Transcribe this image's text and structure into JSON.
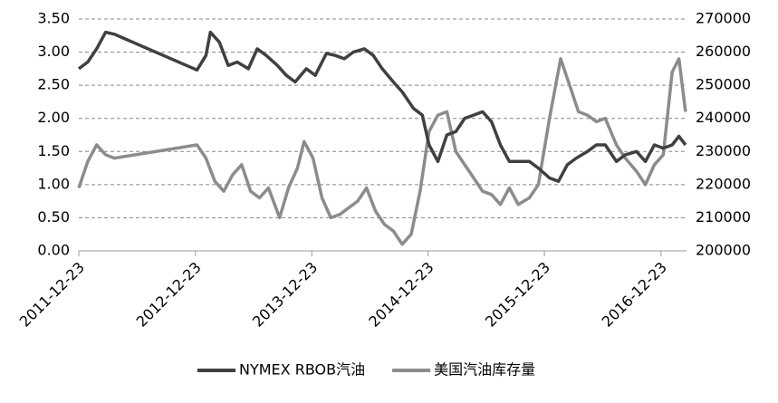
{
  "chart_data": {
    "type": "line",
    "xlim": [
      "2011-12-23",
      "2017-03-13"
    ],
    "xticks": [
      "2011-12-23",
      "2012-12-23",
      "2013-12-23",
      "2014-12-23",
      "2015-12-23",
      "2016-12-23"
    ],
    "ylim": [
      0,
      3.5
    ],
    "yticks": [
      {
        "value": 0,
        "label": "0.00"
      },
      {
        "value": 0.5,
        "label": "0.50"
      },
      {
        "value": 1,
        "label": "1.00"
      },
      {
        "value": 1.5,
        "label": "1.50"
      },
      {
        "value": 2,
        "label": "2.00"
      },
      {
        "value": 2.5,
        "label": "2.50"
      },
      {
        "value": 3,
        "label": "3.00"
      },
      {
        "value": 3.5,
        "label": "3.50"
      }
    ],
    "y2lim": [
      200000,
      270000
    ],
    "y2ticks": [
      200000,
      210000,
      220000,
      230000,
      240000,
      250000,
      260000,
      270000
    ],
    "grid": true,
    "legend": "bottom",
    "series": [
      {
        "name": "NYMEX RBOB汽油",
        "color": "#404040",
        "x": [
          "2011-12-23",
          "2012-01-20",
          "2012-02-17",
          "2012-03-16",
          "2012-04-13",
          "2012-12-28",
          "2013-01-25",
          "2013-02-08",
          "2013-03-08",
          "2013-04-05",
          "2013-05-03",
          "2013-06-07",
          "2013-07-05",
          "2013-08-02",
          "2013-09-06",
          "2013-10-04",
          "2013-11-01",
          "2013-12-06",
          "2014-01-03",
          "2014-02-07",
          "2014-03-07",
          "2014-04-04",
          "2014-05-02",
          "2014-06-06",
          "2014-07-04",
          "2014-08-01",
          "2014-09-05",
          "2014-10-03",
          "2014-11-07",
          "2014-12-05",
          "2014-12-26",
          "2015-01-23",
          "2015-02-20",
          "2015-03-20",
          "2015-04-17",
          "2015-05-15",
          "2015-06-12",
          "2015-07-10",
          "2015-08-07",
          "2015-09-04",
          "2015-10-02",
          "2015-11-06",
          "2015-12-04",
          "2016-01-08",
          "2016-02-05",
          "2016-03-04",
          "2016-04-01",
          "2016-05-06",
          "2016-06-03",
          "2016-07-01",
          "2016-08-05",
          "2016-09-02",
          "2016-10-07",
          "2016-11-04",
          "2016-12-02",
          "2016-12-30",
          "2017-01-27",
          "2017-02-17",
          "2017-03-10"
        ],
        "values": [
          2.75,
          2.85,
          3.05,
          3.3,
          3.27,
          2.73,
          2.95,
          3.3,
          3.15,
          2.8,
          2.85,
          2.75,
          3.05,
          2.95,
          2.8,
          2.65,
          2.55,
          2.75,
          2.65,
          2.98,
          2.95,
          2.9,
          3.0,
          3.05,
          2.95,
          2.75,
          2.55,
          2.4,
          2.15,
          2.05,
          1.6,
          1.35,
          1.75,
          1.8,
          2.0,
          2.05,
          2.1,
          1.95,
          1.6,
          1.35,
          1.35,
          1.35,
          1.25,
          1.1,
          1.05,
          1.3,
          1.4,
          1.5,
          1.6,
          1.6,
          1.35,
          1.45,
          1.5,
          1.35,
          1.6,
          1.55,
          1.6,
          1.73,
          1.6
        ]
      },
      {
        "name": "美国汽油库存量",
        "color": "#8c8c8c",
        "axis": "y2",
        "x": [
          "2011-12-23",
          "2012-01-20",
          "2012-02-17",
          "2012-03-16",
          "2012-04-13",
          "2012-12-28",
          "2013-01-25",
          "2013-02-22",
          "2013-03-22",
          "2013-04-19",
          "2013-05-17",
          "2013-06-14",
          "2013-07-12",
          "2013-08-09",
          "2013-09-13",
          "2013-10-11",
          "2013-11-08",
          "2013-11-29",
          "2013-12-27",
          "2014-01-24",
          "2014-02-21",
          "2014-03-21",
          "2014-04-18",
          "2014-05-16",
          "2014-06-13",
          "2014-07-11",
          "2014-08-08",
          "2014-09-05",
          "2014-10-03",
          "2014-10-31",
          "2014-11-28",
          "2014-12-26",
          "2015-01-23",
          "2015-02-20",
          "2015-03-20",
          "2015-04-17",
          "2015-05-15",
          "2015-06-12",
          "2015-07-10",
          "2015-08-07",
          "2015-09-04",
          "2015-10-02",
          "2015-11-06",
          "2015-12-04",
          "2016-01-08",
          "2016-02-12",
          "2016-03-11",
          "2016-04-08",
          "2016-05-06",
          "2016-06-03",
          "2016-07-01",
          "2016-08-05",
          "2016-09-02",
          "2016-10-07",
          "2016-11-04",
          "2016-12-02",
          "2016-12-30",
          "2017-01-27",
          "2017-02-17",
          "2017-03-10"
        ],
        "values": [
          219000,
          227000,
          232000,
          229000,
          228000,
          232000,
          228000,
          221000,
          218000,
          223000,
          226000,
          218000,
          216000,
          219000,
          210000,
          219000,
          225000,
          233000,
          228000,
          216000,
          210000,
          211000,
          213000,
          215000,
          219000,
          212000,
          208000,
          206000,
          202000,
          205000,
          218000,
          236000,
          241000,
          242000,
          230000,
          226000,
          222000,
          218000,
          217000,
          214000,
          219000,
          214000,
          216000,
          220000,
          240000,
          258000,
          250000,
          242000,
          241000,
          239000,
          240000,
          232000,
          228000,
          224000,
          220000,
          226000,
          229000,
          254000,
          258000,
          242000
        ]
      }
    ]
  }
}
